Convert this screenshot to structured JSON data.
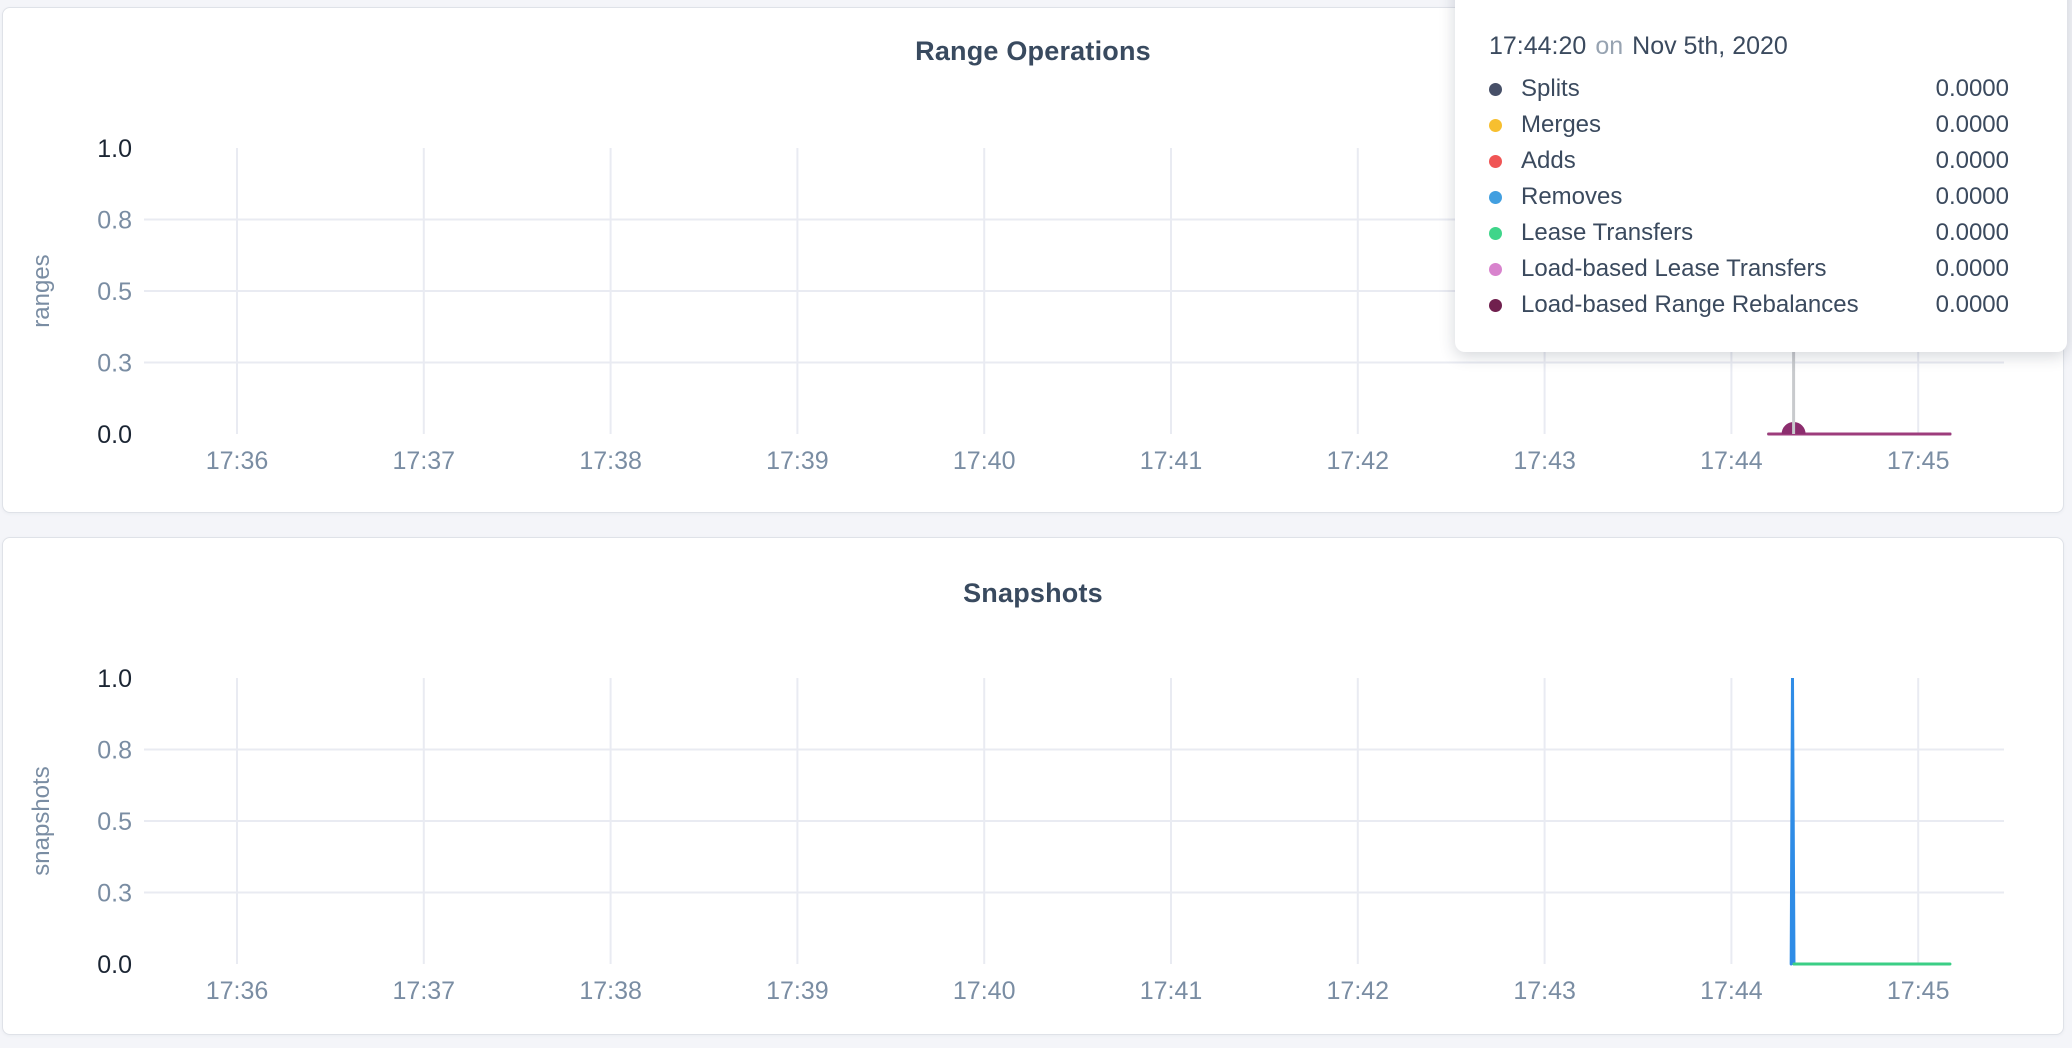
{
  "page": {
    "background_color": "#f4f5f9"
  },
  "colors": {
    "page_bg": "#f4f5f9",
    "card_bg": "#ffffff",
    "card_border": "#dfe2e8",
    "title_text": "#394a5f",
    "grid": "#e9ebf2",
    "hover_line": "#c8cacd",
    "axis_label": "#7a8da3",
    "axis_label_strong": "#1b2533",
    "tooltip_text": "#3b4a5e",
    "tooltip_muted": "#97a3b1"
  },
  "tooltip": {
    "time": "17:44:20",
    "connector": "on",
    "date": "Nov 5th, 2020",
    "rows": [
      {
        "label": "Splits",
        "value": "0.0000",
        "color": "#475068"
      },
      {
        "label": "Merges",
        "value": "0.0000",
        "color": "#f7bf2f"
      },
      {
        "label": "Adds",
        "value": "0.0000",
        "color": "#f05555"
      },
      {
        "label": "Removes",
        "value": "0.0000",
        "color": "#429fe0"
      },
      {
        "label": "Lease Transfers",
        "value": "0.0000",
        "color": "#3fd58a"
      },
      {
        "label": "Load-based Lease Transfers",
        "value": "0.0000",
        "color": "#d883cd"
      },
      {
        "label": "Load-based Range Rebalances",
        "value": "0.0000",
        "color": "#70204e"
      }
    ]
  },
  "chart_data": [
    {
      "type": "line",
      "title": "Range Operations",
      "ylabel": "ranges",
      "x_tick_labels": [
        "17:36",
        "17:37",
        "17:38",
        "17:39",
        "17:40",
        "17:41",
        "17:42",
        "17:43",
        "17:44",
        "17:45"
      ],
      "x_tick_values": [
        36,
        37,
        38,
        39,
        40,
        41,
        42,
        43,
        44,
        45
      ],
      "xlim": [
        35.5,
        45.45
      ],
      "ylim": [
        0,
        1
      ],
      "y_ticks": [
        {
          "label": "0.0",
          "value": 0
        },
        {
          "label": "0.3",
          "value": 0.25
        },
        {
          "label": "0.5",
          "value": 0.5
        },
        {
          "label": "0.8",
          "value": 0.75
        },
        {
          "label": "1.0",
          "value": 1
        }
      ],
      "grid": true,
      "legend_position": "hover tooltip overlay, top right",
      "hover": {
        "x": 44.333,
        "time": "17:44:20",
        "marker_color": "#8c2d6e",
        "marker_radius": 12
      },
      "series": [
        {
          "name": "Splits",
          "color": "#475068",
          "points": [
            [
              44.2,
              0
            ],
            [
              45.17,
              0
            ]
          ]
        },
        {
          "name": "Merges",
          "color": "#f7bf2f",
          "points": [
            [
              44.2,
              0
            ],
            [
              45.17,
              0
            ]
          ]
        },
        {
          "name": "Adds",
          "color": "#f05555",
          "points": [
            [
              44.2,
              0
            ],
            [
              45.17,
              0
            ]
          ]
        },
        {
          "name": "Removes",
          "color": "#429fe0",
          "points": [
            [
              44.2,
              0
            ],
            [
              45.17,
              0
            ]
          ]
        },
        {
          "name": "Lease Transfers",
          "color": "#3fd58a",
          "points": [
            [
              44.2,
              0
            ],
            [
              45.17,
              0
            ]
          ]
        },
        {
          "name": "Load-based Lease Transfers",
          "color": "#d883cd",
          "points": [
            [
              44.2,
              0
            ],
            [
              45.17,
              0
            ]
          ]
        },
        {
          "name": "Load-based Range Rebalances",
          "color": "#9d3c7c",
          "points": [
            [
              44.2,
              0
            ],
            [
              45.17,
              0
            ]
          ]
        }
      ]
    },
    {
      "type": "line",
      "title": "Snapshots",
      "ylabel": "snapshots",
      "x_tick_labels": [
        "17:36",
        "17:37",
        "17:38",
        "17:39",
        "17:40",
        "17:41",
        "17:42",
        "17:43",
        "17:44",
        "17:45"
      ],
      "x_tick_values": [
        36,
        37,
        38,
        39,
        40,
        41,
        42,
        43,
        44,
        45
      ],
      "xlim": [
        35.5,
        45.45
      ],
      "ylim": [
        0,
        1
      ],
      "y_ticks": [
        {
          "label": "0.0",
          "value": 0
        },
        {
          "label": "0.3",
          "value": 0.25
        },
        {
          "label": "0.5",
          "value": 0.5
        },
        {
          "label": "0.8",
          "value": 0.75
        },
        {
          "label": "1.0",
          "value": 1
        }
      ],
      "grid": true,
      "series": [
        {
          "name": "",
          "color": "#2f8ce6",
          "points": [
            [
              44.32,
              0
            ],
            [
              44.327,
              1
            ],
            [
              44.335,
              0
            ]
          ]
        },
        {
          "name": "",
          "color": "#3bce85",
          "points": [
            [
              44.335,
              0
            ],
            [
              45.17,
              0
            ]
          ]
        }
      ]
    }
  ]
}
